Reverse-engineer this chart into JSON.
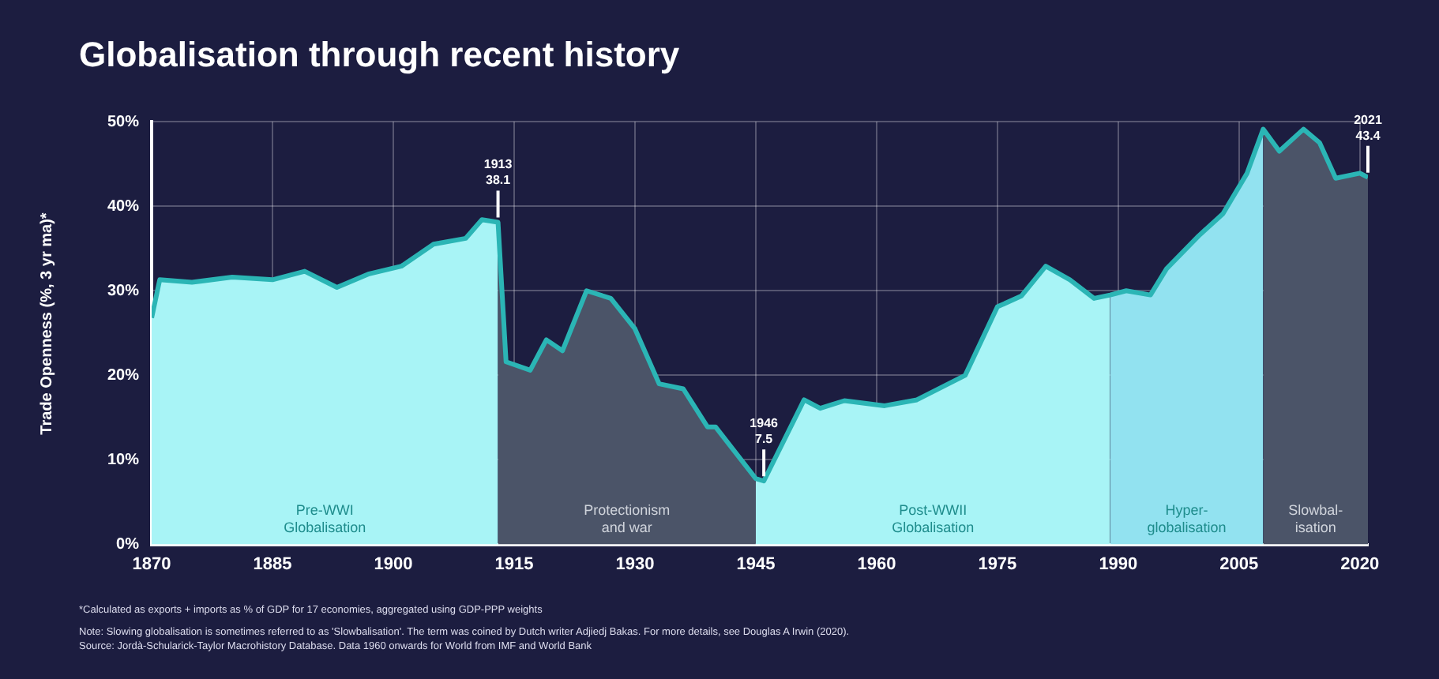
{
  "chart_data": {
    "type": "area",
    "title": "Globalisation through recent history",
    "ylabel": "Trade Openness (%, 3 yr ma)*",
    "x": [
      1870,
      1871,
      1875,
      1880,
      1885,
      1889,
      1893,
      1897,
      1901,
      1905,
      1909,
      1911,
      1913,
      1914,
      1917,
      1919,
      1921,
      1924,
      1927,
      1930,
      1933,
      1936,
      1939,
      1940,
      1945,
      1946,
      1951,
      1953,
      1956,
      1961,
      1965,
      1971,
      1975,
      1978,
      1981,
      1984,
      1987,
      1989,
      1991,
      1994,
      1996,
      2000,
      2003,
      2006,
      2008,
      2010,
      2013,
      2015,
      2017,
      2020,
      2021
    ],
    "series": [
      {
        "type": "line",
        "color": "#2bb5b5",
        "values": [
          26.8,
          31.3,
          31.0,
          31.6,
          31.3,
          32.3,
          30.4,
          32.0,
          32.9,
          35.5,
          36.2,
          38.4,
          38.1,
          21.6,
          20.6,
          24.2,
          22.9,
          30.0,
          29.1,
          25.5,
          19.0,
          18.4,
          13.9,
          13.9,
          7.8,
          7.5,
          17.1,
          16.1,
          17.0,
          16.4,
          17.1,
          20.0,
          28.1,
          29.4,
          32.9,
          31.3,
          29.1,
          29.5,
          30.0,
          29.5,
          32.6,
          36.5,
          39.1,
          43.9,
          49.1,
          46.5,
          49.1,
          47.5,
          43.3,
          43.9,
          43.4
        ]
      },
      {
        "color": "#a8f4f6",
        "x": [
          1870,
          1871,
          1875,
          1880,
          1885,
          1889,
          1893,
          1897,
          1901,
          1905,
          1909,
          1911,
          1913
        ],
        "values": [
          26.8,
          31.3,
          31.0,
          31.6,
          31.3,
          32.3,
          30.4,
          32.0,
          32.9,
          35.5,
          36.2,
          38.4,
          38.1
        ]
      },
      {
        "color": "#4b5468",
        "x": [
          1913,
          1914,
          1917,
          1919,
          1921,
          1924,
          1927,
          1930,
          1933,
          1936,
          1939,
          1940,
          1945
        ],
        "values": [
          38.1,
          21.6,
          20.6,
          24.2,
          22.9,
          30.0,
          29.1,
          25.5,
          19.0,
          18.4,
          13.9,
          13.9,
          7.8
        ]
      },
      {
        "color": "#a8f4f6",
        "x": [
          1945,
          1946,
          1951,
          1953,
          1956,
          1961,
          1965,
          1971,
          1975,
          1978,
          1981,
          1984,
          1987,
          1989
        ],
        "values": [
          7.8,
          7.5,
          17.1,
          16.1,
          17.0,
          16.4,
          17.1,
          20.0,
          28.1,
          29.4,
          32.9,
          31.3,
          29.1,
          29.5
        ]
      },
      {
        "color": "#92e2f0",
        "x": [
          1989,
          1991,
          1994,
          1996,
          2000,
          2003,
          2006,
          2008
        ],
        "values": [
          29.5,
          30.0,
          29.5,
          32.6,
          36.5,
          39.1,
          43.9,
          49.1
        ]
      },
      {
        "color": "#4b5468",
        "x": [
          2008,
          2010,
          2013,
          2015,
          2017,
          2020,
          2021
        ],
        "values": [
          49.1,
          46.5,
          49.1,
          47.5,
          43.3,
          43.9,
          43.4
        ]
      }
    ],
    "xlim": [
      1870,
      2021
    ],
    "xticks": [
      1870,
      1885,
      1900,
      1915,
      1930,
      1945,
      1960,
      1975,
      1990,
      2005,
      2020
    ],
    "ylim": [
      0,
      50
    ],
    "yticks": [
      {
        "value": 0,
        "label": "0%"
      },
      {
        "value": 10,
        "label": "10%"
      },
      {
        "value": 20,
        "label": "20%"
      },
      {
        "value": 30,
        "label": "30%"
      },
      {
        "value": 40,
        "label": "40%"
      },
      {
        "value": 50,
        "label": "50%"
      }
    ],
    "grid": true,
    "annotations": [
      {
        "text": "1913\n38.1",
        "x": 1913,
        "y": 38.1
      },
      {
        "text": "1946\n7.5",
        "x": 1946,
        "y": 7.5
      },
      {
        "text": "2021\n43.4",
        "x": 2021,
        "y": 43.4
      },
      {
        "text": "Pre-WWI\nGlobalisation",
        "x": 1891.5,
        "y": 0
      },
      {
        "text": "Protectionism\nand war",
        "x": 1929,
        "y": 0
      },
      {
        "text": "Post-WWII\nGlobalisation",
        "x": 1967,
        "y": 0
      },
      {
        "text": "Hyper-\nglobalisation",
        "x": 1998.5,
        "y": 0
      },
      {
        "text": "Slowbal-\nisation",
        "x": 2014.5,
        "y": 0
      },
      "*Calculated as exports + imports as % of GDP for 17 economies, aggregated using GDP-PPP weights",
      "Note: Slowing globalisation is sometimes referred to as 'Slowbalisation'. The term was coined by Dutch writer Adjiedj Bakas. For more details, see Douglas A Irwin (2020).",
      "Source: Jordà-Schularick-Taylor Macrohistory Database. Data 1960 onwards for World from IMF and World Bank"
    ]
  }
}
